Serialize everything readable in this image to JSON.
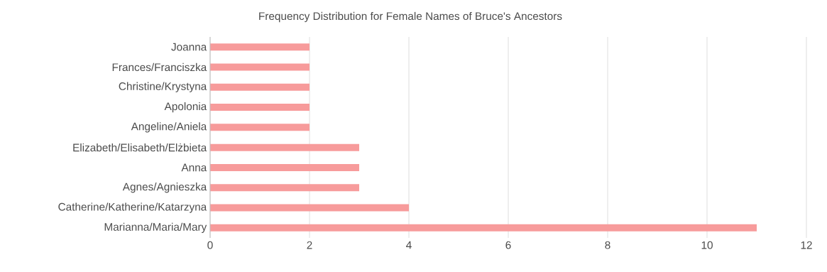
{
  "chart_data": {
    "type": "bar",
    "orientation": "horizontal",
    "title": "Frequency Distribution for Female Names of Bruce's Ancestors",
    "categories": [
      "Joanna",
      "Frances/Franciszka",
      "Christine/Krystyna",
      "Apolonia",
      "Angeline/Aniela",
      "Elizabeth/Elisabeth/Elżbieta",
      "Anna",
      "Agnes/Agnieszka",
      "Catherine/Katherine/Katarzyna",
      "Marianna/Maria/Mary"
    ],
    "values": [
      2,
      2,
      2,
      2,
      2,
      3,
      3,
      3,
      4,
      11
    ],
    "color": "#f79b9b",
    "xlim": [
      0,
      12
    ],
    "xticks": [
      0,
      2,
      4,
      6,
      8,
      10,
      12
    ],
    "grid": "x"
  }
}
